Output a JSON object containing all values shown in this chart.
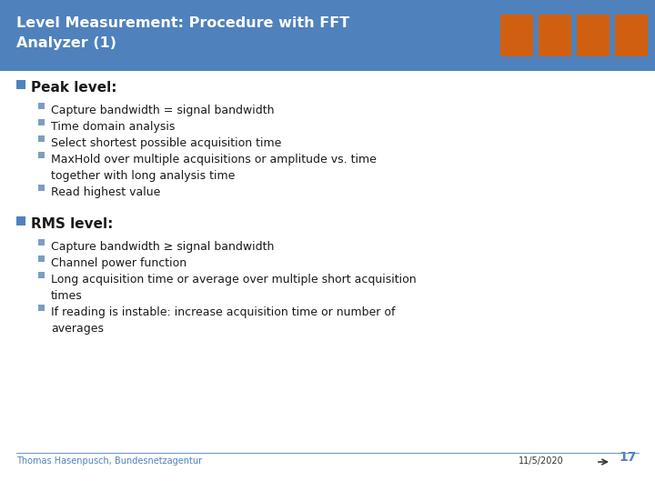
{
  "title_line1": "Level Measurement: Procedure with FFT",
  "title_line2": "Analyzer (1)",
  "title_bg_color": "#4F81BD",
  "title_text_color": "#FFFFFF",
  "body_bg_color": "#F0F0F0",
  "section1_header": "Peak level:",
  "section1_bullet_color": "#4F81BD",
  "sub_bullet_color": "#7F9DC0",
  "section1_items": [
    "Capture bandwidth = signal bandwidth",
    "Time domain analysis",
    "Select shortest possible acquisition time",
    "MaxHold over multiple acquisitions or amplitude vs. time\ntogether with long analysis time",
    "Read highest value"
  ],
  "section2_header": "RMS level:",
  "section2_bullet_color": "#4F81BD",
  "section2_items": [
    "Capture bandwidth ≥ signal bandwidth",
    "Channel power function",
    "Long acquisition time or average over multiple short acquisition\ntimes",
    "If reading is instable: increase acquisition time or number of\naverages"
  ],
  "footer_left": "Thomas Hasenpusch, Bundesnetzagentur",
  "footer_right": "11/5/2020",
  "page_number": "17",
  "footer_text_color": "#4F81BD",
  "arrow_color": "#333333",
  "header_font_size": 11.5,
  "section_header_font_size": 11,
  "body_font_size": 9,
  "footer_font_size": 7
}
